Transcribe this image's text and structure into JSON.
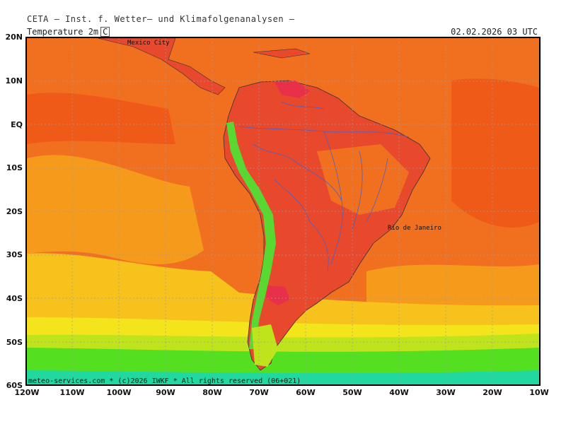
{
  "header": {
    "title": "CETA — Inst. f. Wetter— und Klimafolgenanalysen —",
    "variable": "Temperature 2m",
    "unit": "C",
    "valid_time": "02.02.2026 03 UTC"
  },
  "map": {
    "lat_labels": [
      "20N",
      "10N",
      "EQ",
      "10S",
      "20S",
      "30S",
      "40S",
      "50S",
      "60S"
    ],
    "lon_labels": [
      "120W",
      "110W",
      "100W",
      "90W",
      "80W",
      "70W",
      "60W",
      "50W",
      "40W",
      "30W",
      "20W",
      "10W"
    ],
    "cities": [
      {
        "name": "Mexico City"
      },
      {
        "name": "Rio de Janeiro"
      }
    ],
    "colors": {
      "ocean_warm": "#f07020",
      "ocean_hot": "#f05a18",
      "ocean_mid": "#f69a1c",
      "ocean_cool": "#f8c21c",
      "ocean_yellow": "#f4e41c",
      "cool_green_yellow": "#c0e41c",
      "cool_green": "#54e020",
      "cold_teal": "#20d8a0",
      "land_hot": "#e8482c",
      "land_very_hot": "#e8304a",
      "andes_green": "#58d830",
      "rivers": "#5060c0",
      "grid": "#9a9aa8"
    }
  },
  "credit": "meteo-services.com * (c)2026 IWKF * All rights reserved (06+021)"
}
